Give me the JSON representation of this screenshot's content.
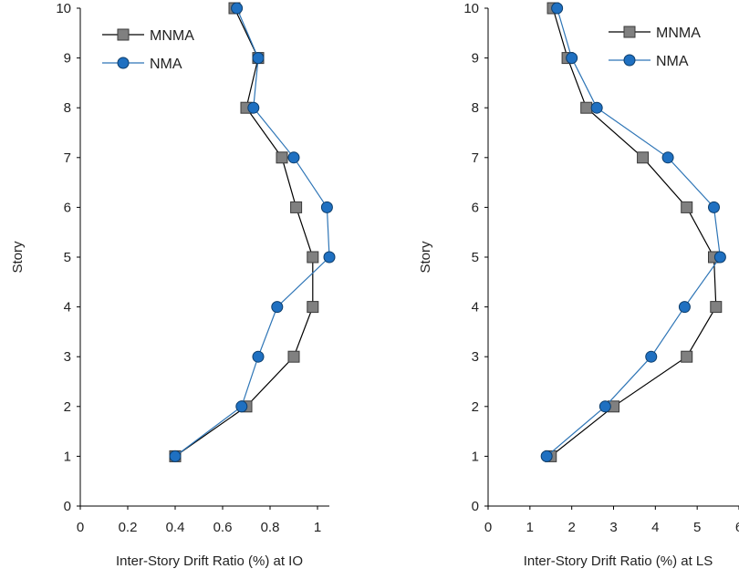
{
  "chart_data": [
    {
      "type": "line",
      "xlabel": "Inter-Story Drift Ratio (%) at IO",
      "ylabel": "Story",
      "xlim": [
        0,
        1.05
      ],
      "ylim": [
        0,
        10
      ],
      "xticks": [
        "0",
        "0.2",
        "0.4",
        "0.6",
        "0.8",
        "1"
      ],
      "xtick_values": [
        0,
        0.2,
        0.4,
        0.6,
        0.8,
        1.0
      ],
      "yticks": [
        "0",
        "1",
        "2",
        "3",
        "4",
        "5",
        "6",
        "7",
        "8",
        "9",
        "10"
      ],
      "grid": false,
      "legend_position": "top-left",
      "series": [
        {
          "name": "MNMA",
          "color": "#000000",
          "marker": "square",
          "marker_color": "#808080",
          "x": [
            0.4,
            0.7,
            0.9,
            0.98,
            0.98,
            0.91,
            0.85,
            0.7,
            0.75,
            0.65
          ],
          "y": [
            1,
            2,
            3,
            4,
            5,
            6,
            7,
            8,
            9,
            10
          ]
        },
        {
          "name": "NMA",
          "color": "#2E75B6",
          "marker": "circle",
          "marker_color": "#1F70C1",
          "x": [
            0.4,
            0.68,
            0.75,
            0.83,
            1.05,
            1.04,
            0.9,
            0.73,
            0.75,
            0.66
          ],
          "y": [
            1,
            2,
            3,
            4,
            5,
            6,
            7,
            8,
            9,
            10
          ]
        }
      ]
    },
    {
      "type": "line",
      "xlabel": "Inter-Story Drift Ratio (%) at LS",
      "ylabel": "Story",
      "xlim": [
        0,
        6
      ],
      "ylim": [
        0,
        10
      ],
      "xticks": [
        "0",
        "1",
        "2",
        "3",
        "4",
        "5",
        "6"
      ],
      "xtick_values": [
        0,
        1,
        2,
        3,
        4,
        5,
        6
      ],
      "yticks": [
        "0",
        "1",
        "2",
        "3",
        "4",
        "5",
        "6",
        "7",
        "8",
        "9",
        "10"
      ],
      "grid": false,
      "legend_position": "top-right",
      "series": [
        {
          "name": "MNMA",
          "color": "#000000",
          "marker": "square",
          "marker_color": "#808080",
          "x": [
            1.5,
            3.0,
            4.75,
            5.45,
            5.4,
            4.75,
            3.7,
            2.35,
            1.9,
            1.55
          ],
          "y": [
            1,
            2,
            3,
            4,
            5,
            6,
            7,
            8,
            9,
            10
          ]
        },
        {
          "name": "NMA",
          "color": "#2E75B6",
          "marker": "circle",
          "marker_color": "#1F70C1",
          "x": [
            1.4,
            2.8,
            3.9,
            4.7,
            5.55,
            5.4,
            4.3,
            2.6,
            2.0,
            1.65
          ],
          "y": [
            1,
            2,
            3,
            4,
            5,
            6,
            7,
            8,
            9,
            10
          ]
        }
      ]
    }
  ]
}
